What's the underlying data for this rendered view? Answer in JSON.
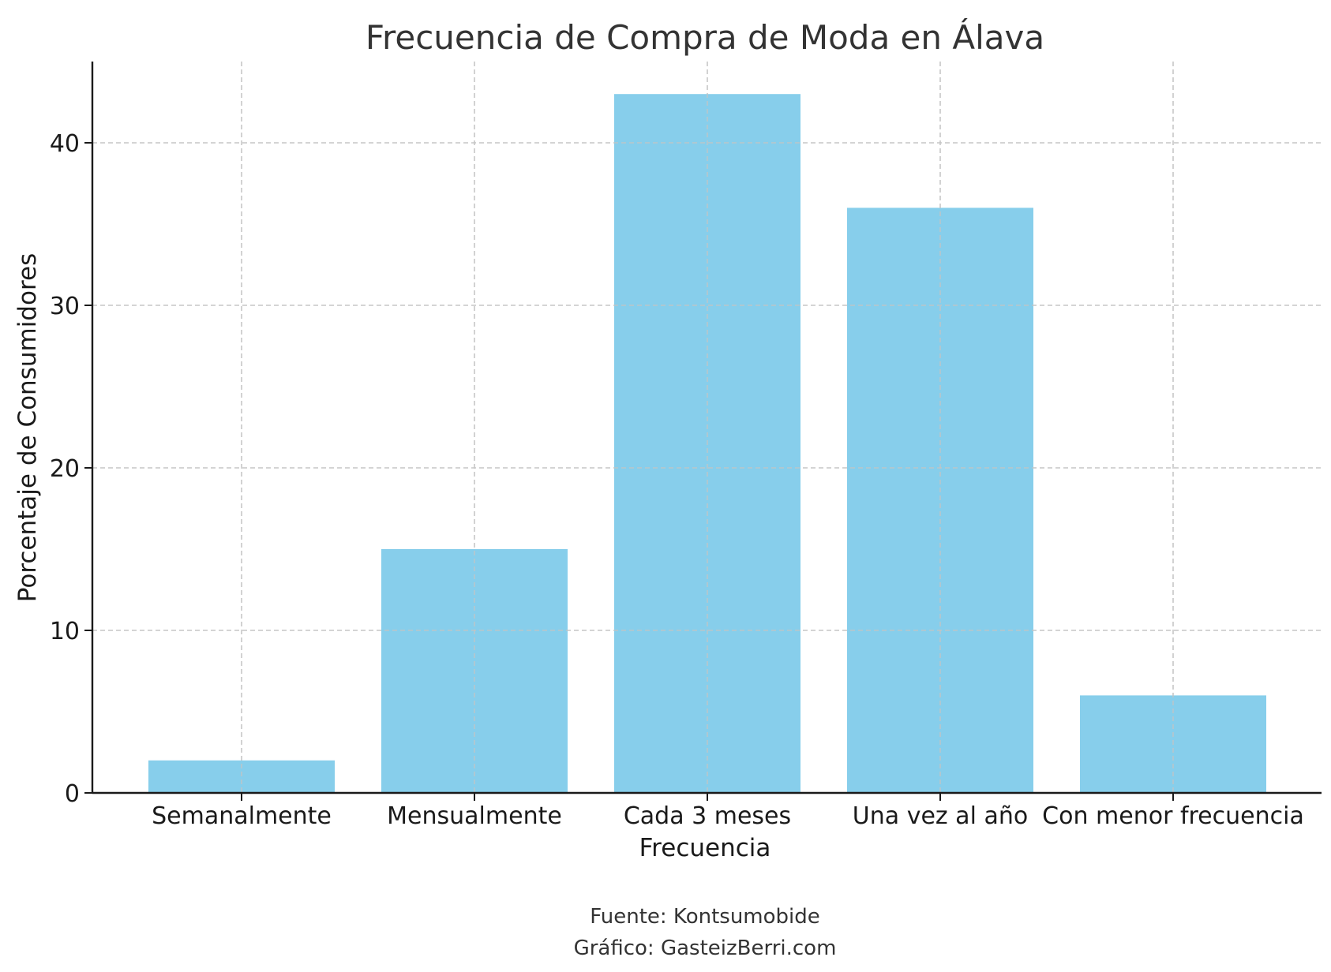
{
  "chart_data": {
    "type": "bar",
    "title": "Frecuencia de Compra de Moda en Álava",
    "xlabel": "Frecuencia",
    "ylabel": "Porcentaje de Consumidores",
    "categories": [
      "Semanalmente",
      "Mensualmente",
      "Cada 3 meses",
      "Una vez al año",
      "Con menor frecuencia"
    ],
    "values": [
      2,
      15,
      43,
      36,
      6
    ],
    "ylim": [
      0,
      45
    ],
    "yticks": [
      0,
      10,
      20,
      30,
      40
    ],
    "grid": true,
    "bar_color": "#87ceeb"
  },
  "footer": {
    "source": "Fuente: Kontsumobide",
    "credit": "Gráfico: GasteizBerri.com"
  }
}
